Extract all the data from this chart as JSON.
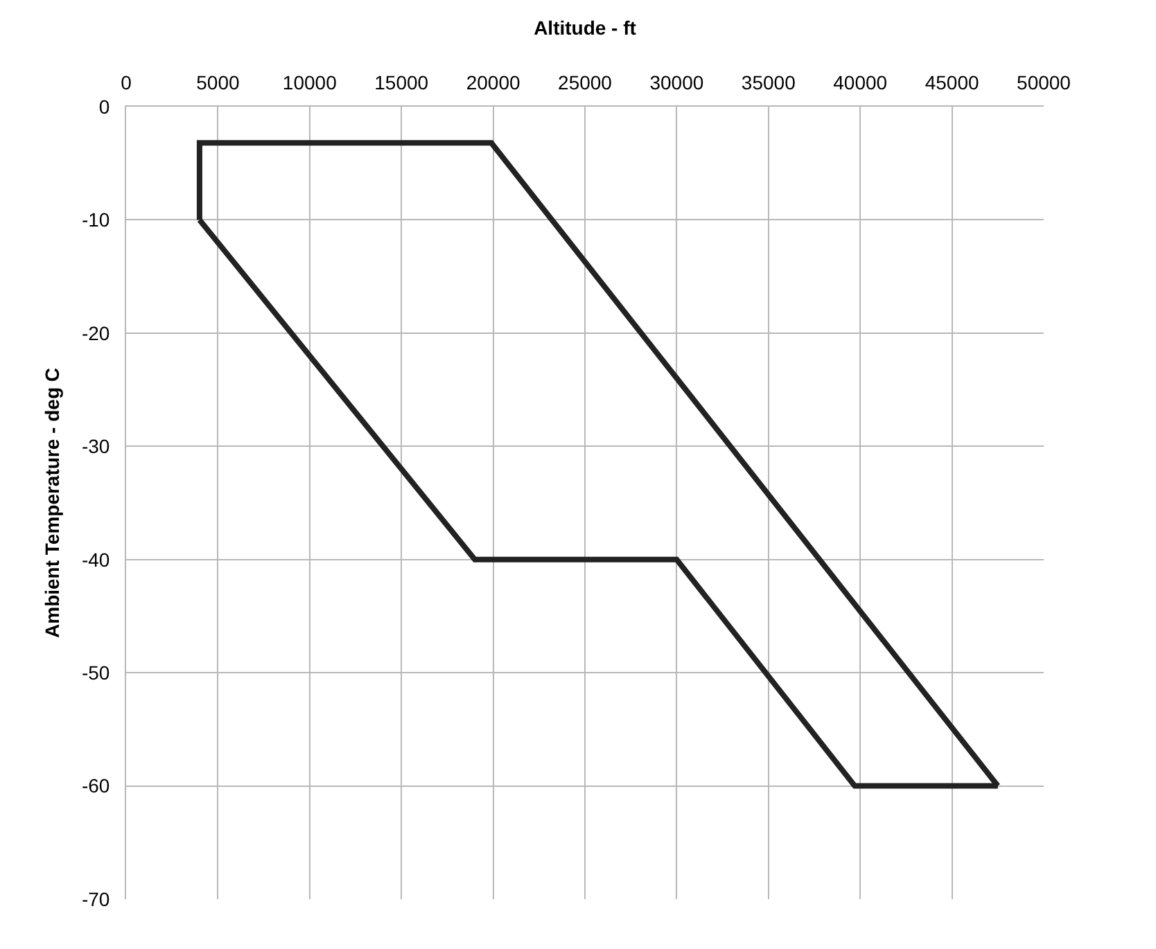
{
  "chart_data": {
    "type": "line",
    "xlabel": "Altitude - ft",
    "ylabel": "Ambient Temperature - deg C",
    "series": [
      {
        "color": "#222222",
        "x": [
          4000,
          4000,
          19900,
          47500
        ],
        "values": [
          -10,
          -3.2,
          -3.2,
          -60
        ]
      },
      {
        "color": "#222222",
        "x": [
          4000,
          19000,
          30000,
          39700,
          47500
        ],
        "values": [
          -10,
          -40,
          -40,
          -60,
          -60
        ]
      }
    ],
    "xlim": [
      0,
      50000
    ],
    "xticks": [
      0,
      5000,
      10000,
      15000,
      20000,
      25000,
      30000,
      35000,
      40000,
      45000,
      50000
    ],
    "ylim": [
      -70,
      0
    ],
    "yticks": [
      0,
      -10,
      -20,
      -30,
      -40,
      -50,
      -60,
      -70
    ],
    "grid": true,
    "line_style": "solid"
  }
}
